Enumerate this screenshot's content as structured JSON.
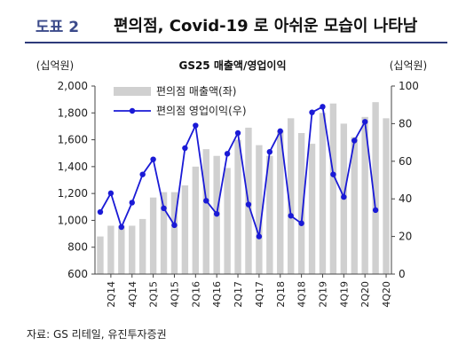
{
  "header": {
    "figure_label": "도표 2",
    "title": "편의점, Covid-19 로 아쉬운 모습이 나타남"
  },
  "source": "자료: GS 리테일, 유진투자증권",
  "chart_data": {
    "type": "bar",
    "title": "GS25 매출액/영업이익",
    "ylabel": "(십억원)",
    "y2label": "(십억원)",
    "ylim": [
      600,
      2000
    ],
    "y2lim": [
      0,
      100
    ],
    "yticks": [
      "2,000",
      "1,800",
      "1,600",
      "1,400",
      "1,200",
      "1,000",
      "800",
      "600"
    ],
    "y2ticks": [
      "100",
      "80",
      "60",
      "40",
      "20",
      "0"
    ],
    "categories": [
      "1Q14",
      "2Q14",
      "3Q14",
      "4Q14",
      "1Q15",
      "2Q15",
      "3Q15",
      "4Q15",
      "1Q16",
      "2Q16",
      "3Q16",
      "4Q16",
      "1Q17",
      "2Q17",
      "3Q17",
      "4Q17",
      "1Q18",
      "2Q18",
      "3Q18",
      "4Q18",
      "1Q19",
      "2Q19",
      "3Q19",
      "4Q19",
      "1Q20",
      "2Q20",
      "3Q20",
      "4Q20"
    ],
    "xtick_labels": [
      "2Q14",
      "4Q14",
      "2Q15",
      "4Q15",
      "2Q16",
      "4Q16",
      "2Q17",
      "4Q17",
      "2Q18",
      "4Q18",
      "2Q19",
      "4Q19",
      "2Q20",
      "4Q20"
    ],
    "legend_position": "top-left",
    "grid": false,
    "series": [
      {
        "name": "편의점 매출액(좌)",
        "type": "bar",
        "axis": "left",
        "color": "#d0d0d0",
        "values": [
          880,
          960,
          960,
          960,
          1010,
          1170,
          1210,
          1210,
          1260,
          1400,
          1530,
          1480,
          1390,
          1600,
          1690,
          1560,
          1480,
          1670,
          1760,
          1650,
          1570,
          1800,
          1870,
          1720,
          1620,
          1770,
          1880,
          1760
        ]
      },
      {
        "name": "편의점 영업이익(우)",
        "type": "line",
        "axis": "right",
        "color": "#1a1ad6",
        "values": [
          33,
          43,
          25,
          38,
          53,
          61,
          35,
          26,
          67,
          79,
          39,
          32,
          64,
          75,
          37,
          20,
          65,
          76,
          31,
          27,
          86,
          89,
          53,
          41,
          71,
          81,
          34,
          null
        ]
      }
    ]
  }
}
